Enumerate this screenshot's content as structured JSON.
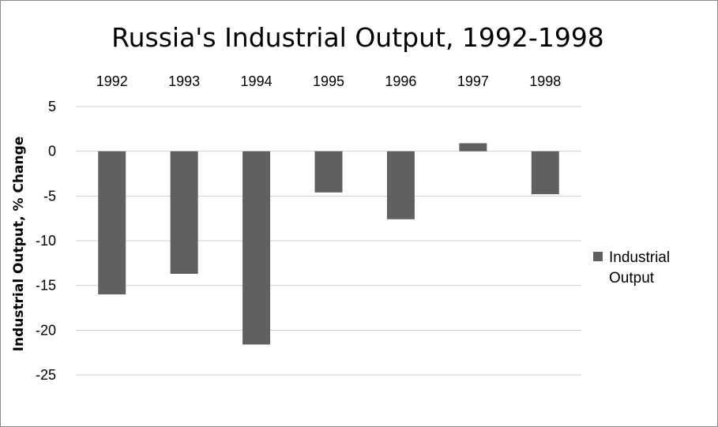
{
  "chart_data": {
    "type": "bar",
    "title": "Russia's Industrial Output, 1992-1998",
    "xlabel": "",
    "ylabel": "Industrial Output, % Change",
    "categories": [
      "1992",
      "1993",
      "1994",
      "1995",
      "1996",
      "1997",
      "1998"
    ],
    "series": [
      {
        "name": "Industrial Output",
        "values": [
          -16,
          -13.7,
          -21.6,
          -4.6,
          -7.6,
          0.9,
          -4.8
        ]
      }
    ],
    "ylim": [
      -25,
      5
    ],
    "yticks": [
      "5",
      "0",
      "-5",
      "-10",
      "-15",
      "-20",
      "-25"
    ],
    "category_labels_position": "top",
    "grid": true,
    "legend_position": "right",
    "colors": {
      "bar": "#606060",
      "grid": "#cfcfcf"
    }
  }
}
